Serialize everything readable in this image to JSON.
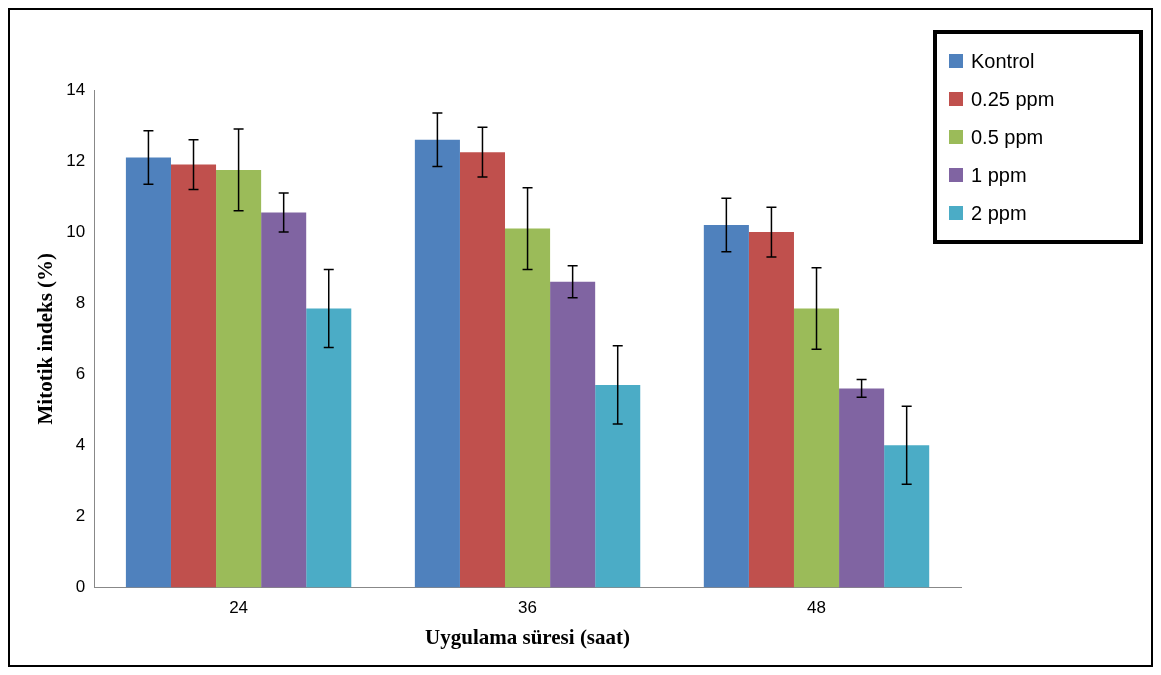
{
  "chart_data": {
    "type": "bar",
    "xlabel": "Uygulama süresi (saat)",
    "ylabel": "Mitotik indeks (%)",
    "categories": [
      "24",
      "36",
      "48"
    ],
    "series": [
      {
        "name": "Kontrol",
        "color": "#4f81bd",
        "values": [
          12.1,
          12.6,
          10.2
        ],
        "errors": [
          0.75,
          0.75,
          0.75
        ]
      },
      {
        "name": "0.25 ppm",
        "color": "#c0504d",
        "values": [
          11.9,
          12.25,
          10.0
        ],
        "errors": [
          0.7,
          0.7,
          0.7
        ]
      },
      {
        "name": "0.5 ppm",
        "color": "#9bbb59",
        "values": [
          11.75,
          10.1,
          7.85
        ],
        "errors": [
          1.15,
          1.15,
          1.15
        ]
      },
      {
        "name": "1 ppm",
        "color": "#8064a2",
        "values": [
          10.55,
          8.6,
          5.6
        ],
        "errors": [
          0.55,
          0.45,
          0.25
        ]
      },
      {
        "name": "2 ppm",
        "color": "#4bacc6",
        "values": [
          7.85,
          5.7,
          4.0
        ],
        "errors": [
          1.1,
          1.1,
          1.1
        ]
      }
    ],
    "ylim": [
      0,
      14
    ],
    "yticks": [
      0,
      2,
      4,
      6,
      8,
      10,
      12,
      14
    ],
    "grid": false,
    "legend": "top right"
  }
}
